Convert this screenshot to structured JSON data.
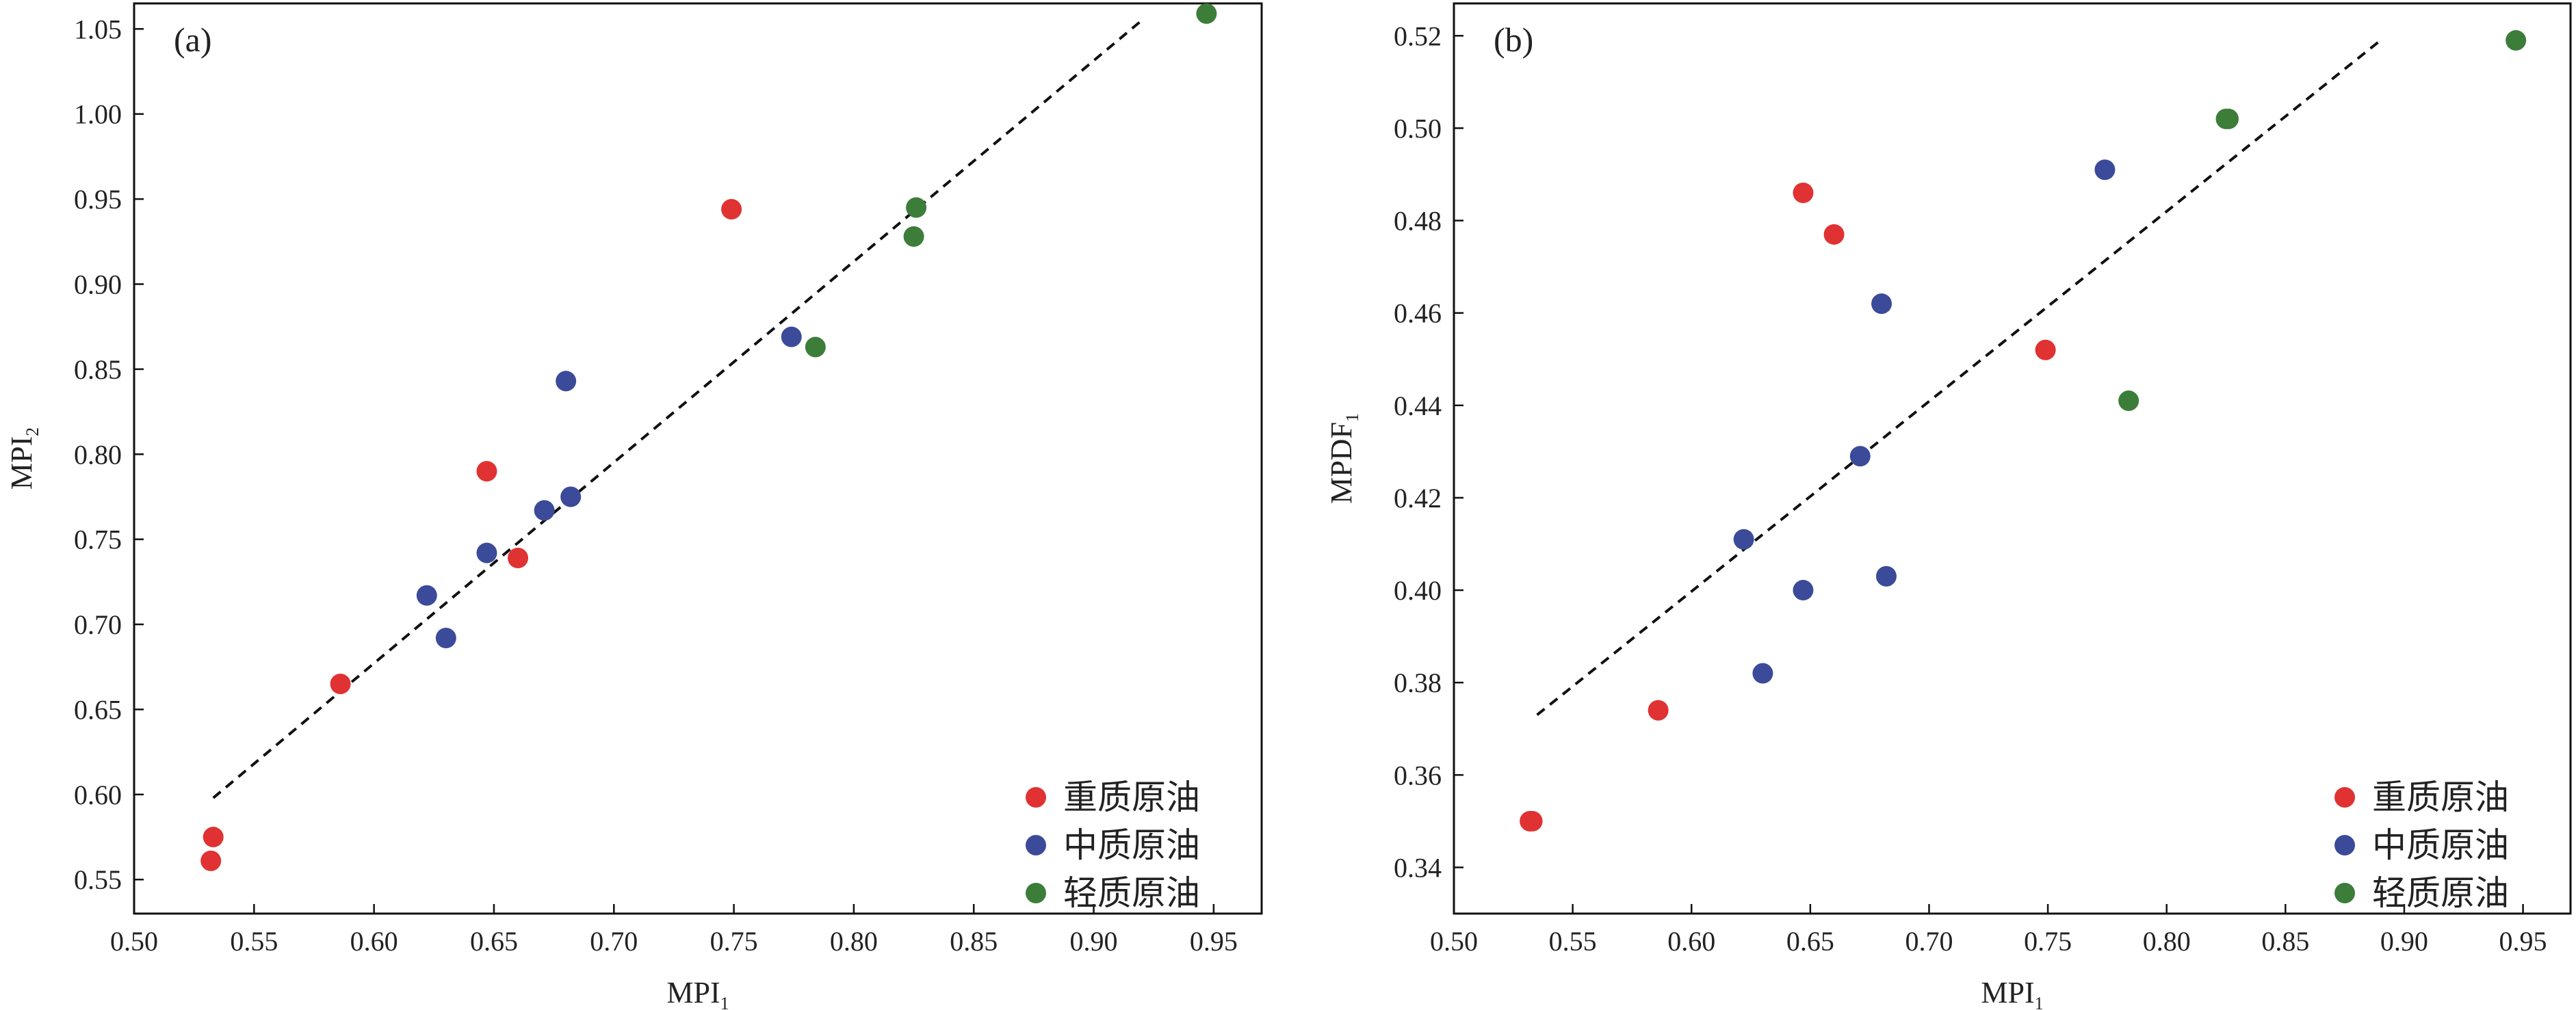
{
  "colors": {
    "heavy": "#e03232",
    "medium": "#3b4b9a",
    "light": "#3c7d3a",
    "fit_line": "#111111",
    "frame": "#111111"
  },
  "legend": [
    "重质原油",
    "中质原油",
    "轻质原油"
  ],
  "chart_data": [
    {
      "type": "scatter",
      "panel_label": "(a)",
      "xlabel": "MPI",
      "xlabel_sub": "1",
      "ylabel": "MPI",
      "ylabel_sub": "2",
      "xlim": [
        0.5,
        0.97
      ],
      "ylim": [
        0.53,
        1.065
      ],
      "xticks": [
        "0.50",
        "0.55",
        "0.60",
        "0.65",
        "0.70",
        "0.75",
        "0.80",
        "0.85",
        "0.90",
        "0.95"
      ],
      "yticks": [
        "0.55",
        "0.60",
        "0.65",
        "0.70",
        "0.75",
        "0.80",
        "0.85",
        "0.90",
        "0.95",
        "1.00",
        "1.05"
      ],
      "legend_position": "bottom-right",
      "series": [
        {
          "name": "重质原油",
          "color_key": "heavy",
          "points": [
            [
              0.533,
              0.575
            ],
            [
              0.532,
              0.561
            ],
            [
              0.586,
              0.665
            ],
            [
              0.647,
              0.79
            ],
            [
              0.66,
              0.739
            ],
            [
              0.749,
              0.944
            ]
          ]
        },
        {
          "name": "中质原油",
          "color_key": "medium",
          "points": [
            [
              0.622,
              0.717
            ],
            [
              0.63,
              0.692
            ],
            [
              0.647,
              0.742
            ],
            [
              0.671,
              0.767
            ],
            [
              0.68,
              0.843
            ],
            [
              0.682,
              0.775
            ],
            [
              0.774,
              0.869
            ]
          ]
        },
        {
          "name": "轻质原油",
          "color_key": "light",
          "points": [
            [
              0.784,
              0.863
            ],
            [
              0.825,
              0.928
            ],
            [
              0.826,
              0.945
            ],
            [
              0.947,
              1.059
            ]
          ]
        }
      ],
      "fit_line": [
        [
          0.533,
          0.598
        ],
        [
          0.92,
          1.055
        ]
      ]
    },
    {
      "type": "scatter",
      "panel_label": "(b)",
      "xlabel": "MPI",
      "xlabel_sub": "1",
      "ylabel": "MPDF",
      "ylabel_sub": "1",
      "xlim": [
        0.5,
        0.97
      ],
      "ylim": [
        0.33,
        0.527
      ],
      "xticks": [
        "0.50",
        "0.55",
        "0.60",
        "0.65",
        "0.70",
        "0.75",
        "0.80",
        "0.85",
        "0.90",
        "0.95"
      ],
      "yticks": [
        "0.34",
        "0.36",
        "0.38",
        "0.40",
        "0.42",
        "0.44",
        "0.46",
        "0.48",
        "0.50",
        "0.52"
      ],
      "legend_position": "bottom-right",
      "series": [
        {
          "name": "重质原油",
          "color_key": "heavy",
          "points": [
            [
              0.533,
              0.35
            ],
            [
              0.532,
              0.35
            ],
            [
              0.586,
              0.374
            ],
            [
              0.647,
              0.486
            ],
            [
              0.66,
              0.477
            ],
            [
              0.749,
              0.452
            ]
          ]
        },
        {
          "name": "中质原油",
          "color_key": "medium",
          "points": [
            [
              0.622,
              0.411
            ],
            [
              0.63,
              0.382
            ],
            [
              0.647,
              0.4
            ],
            [
              0.671,
              0.429
            ],
            [
              0.68,
              0.462
            ],
            [
              0.682,
              0.403
            ],
            [
              0.774,
              0.491
            ]
          ]
        },
        {
          "name": "轻质原油",
          "color_key": "light",
          "points": [
            [
              0.784,
              0.441
            ],
            [
              0.825,
              0.502
            ],
            [
              0.826,
              0.502
            ],
            [
              0.947,
              0.519
            ]
          ]
        }
      ],
      "fit_line": [
        [
          0.535,
          0.373
        ],
        [
          0.89,
          0.519
        ]
      ]
    }
  ]
}
